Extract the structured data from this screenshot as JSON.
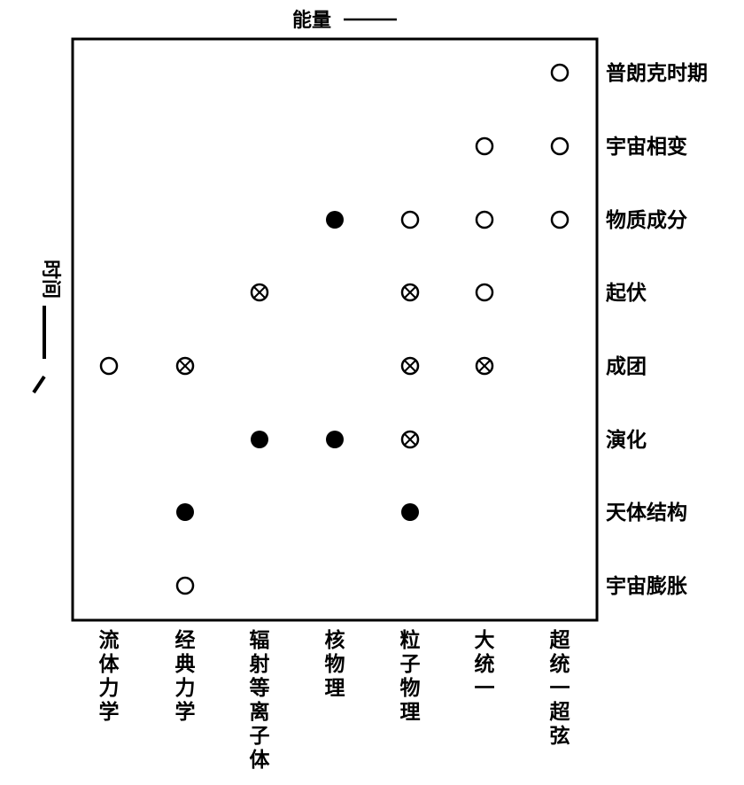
{
  "top_axis_label": "能量",
  "left_axis_label": "时间",
  "colors": {
    "ink": "#000000",
    "paper": "#ffffff"
  },
  "legend_markers": [
    "open-circle",
    "filled-circle",
    "crossed-circle"
  ],
  "columns": [
    {
      "id": "fluid",
      "lines": [
        "流",
        "体",
        "力",
        "学"
      ]
    },
    {
      "id": "classical",
      "lines": [
        "经",
        "典",
        "力",
        "学"
      ]
    },
    {
      "id": "radiation",
      "lines": [
        "辐",
        "射",
        "等",
        "离",
        "子",
        "体"
      ]
    },
    {
      "id": "nuclear",
      "lines": [
        "核",
        "物",
        "理"
      ]
    },
    {
      "id": "particle",
      "lines": [
        "粒",
        "子",
        "物",
        "理"
      ]
    },
    {
      "id": "gut",
      "lines": [
        "大",
        "统",
        "一"
      ]
    },
    {
      "id": "super",
      "lines": [
        "超",
        "统",
        "一",
        "超",
        "弦"
      ]
    }
  ],
  "rows": [
    {
      "id": "planck",
      "label": "普朗克时期"
    },
    {
      "id": "phase",
      "label": "宇宙相变"
    },
    {
      "id": "matter",
      "label": "物质成分"
    },
    {
      "id": "fluct",
      "label": "起伏"
    },
    {
      "id": "cluster",
      "label": "成团"
    },
    {
      "id": "evolution",
      "label": "演化"
    },
    {
      "id": "structure",
      "label": "天体结构"
    },
    {
      "id": "expansion",
      "label": "宇宙膨胀"
    }
  ],
  "cells": [
    {
      "row": 0,
      "col": 6,
      "marker": "open"
    },
    {
      "row": 1,
      "col": 5,
      "marker": "open"
    },
    {
      "row": 1,
      "col": 6,
      "marker": "open"
    },
    {
      "row": 2,
      "col": 3,
      "marker": "filled"
    },
    {
      "row": 2,
      "col": 4,
      "marker": "open"
    },
    {
      "row": 2,
      "col": 5,
      "marker": "open"
    },
    {
      "row": 2,
      "col": 6,
      "marker": "open"
    },
    {
      "row": 3,
      "col": 2,
      "marker": "crossed"
    },
    {
      "row": 3,
      "col": 4,
      "marker": "crossed"
    },
    {
      "row": 3,
      "col": 5,
      "marker": "open"
    },
    {
      "row": 4,
      "col": 0,
      "marker": "open"
    },
    {
      "row": 4,
      "col": 1,
      "marker": "crossed"
    },
    {
      "row": 4,
      "col": 4,
      "marker": "crossed"
    },
    {
      "row": 4,
      "col": 5,
      "marker": "crossed"
    },
    {
      "row": 5,
      "col": 2,
      "marker": "filled"
    },
    {
      "row": 5,
      "col": 3,
      "marker": "filled"
    },
    {
      "row": 5,
      "col": 4,
      "marker": "crossed"
    },
    {
      "row": 6,
      "col": 1,
      "marker": "filled"
    },
    {
      "row": 6,
      "col": 4,
      "marker": "filled"
    },
    {
      "row": 7,
      "col": 1,
      "marker": "open"
    }
  ]
}
